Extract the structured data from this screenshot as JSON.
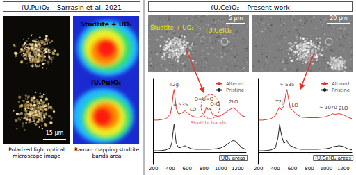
{
  "left_panel": {
    "header": "(U,Pu)O₂ – Sarrasin et al. 2021",
    "images": [
      {
        "caption": "Polarized light optical microscope image",
        "scale_bar": "15 µm"
      },
      {
        "caption": "Raman mapping studtite bands area",
        "labels": [
          "Studtite + UO₂",
          "(U,Pu)O₂"
        ]
      }
    ]
  },
  "right_panel": {
    "header": "(U,Ce)O₂ – Present work",
    "images": [
      {
        "labels": [
          "Studtite + UO₂",
          "(U,Ce)O₂"
        ],
        "scale_bar": "5 µm"
      },
      {
        "scale_bar": "20 µm"
      }
    ]
  },
  "chart_data": [
    {
      "type": "line",
      "title": "UO₂ areas",
      "x": [
        200,
        250,
        300,
        350,
        400,
        420,
        435,
        445,
        455,
        470,
        500,
        540,
        575,
        600,
        650,
        700,
        750,
        800,
        830,
        850,
        870,
        900,
        950,
        1000,
        1050,
        1100,
        1130,
        1150,
        1170,
        1200,
        1250,
        1300
      ],
      "series": [
        {
          "name": "Altered",
          "color": "#e8302a",
          "values": [
            1.1,
            1.1,
            1.12,
            1.15,
            1.3,
            1.6,
            2.0,
            2.15,
            1.9,
            1.5,
            1.3,
            1.35,
            1.42,
            1.35,
            1.25,
            1.2,
            1.2,
            1.3,
            1.55,
            1.45,
            1.5,
            1.3,
            1.22,
            1.25,
            1.35,
            1.45,
            1.5,
            1.52,
            1.48,
            1.4,
            1.25,
            1.2
          ]
        },
        {
          "name": "Pristine",
          "color": "#222222",
          "values": [
            0.05,
            0.05,
            0.06,
            0.08,
            0.15,
            0.35,
            0.75,
            0.95,
            0.7,
            0.3,
            0.15,
            0.18,
            0.22,
            0.18,
            0.12,
            0.1,
            0.1,
            0.1,
            0.1,
            0.1,
            0.1,
            0.11,
            0.12,
            0.15,
            0.22,
            0.32,
            0.38,
            0.4,
            0.38,
            0.3,
            0.15,
            0.1
          ]
        }
      ],
      "xlim": [
        200,
        1300
      ],
      "xticks": [
        200,
        400,
        600,
        800,
        1000,
        1200
      ],
      "ylim": [
        -0.4,
        2.5
      ],
      "tick_labels": "x",
      "legend": "upper right",
      "annotations": [
        {
          "text": "T2g",
          "x": 445,
          "y": 2.3,
          "color": "#000000"
        },
        {
          "text": "≈ 535",
          "x": 520,
          "y": 1.62,
          "color": "#000000"
        },
        {
          "text": "LO",
          "x": 670,
          "y": 1.45,
          "color": "#000000"
        },
        {
          "text": "O=U=O",
          "x": 800,
          "y": 1.8,
          "color": "#000000"
        },
        {
          "text": "O-O",
          "x": 930,
          "y": 1.65,
          "color": "#000000"
        },
        {
          "text": "2LO",
          "x": 1150,
          "y": 1.72,
          "color": "#000000"
        },
        {
          "text": "Studtite bands",
          "x": 850,
          "y": 1.0,
          "color": "#e8302a"
        }
      ]
    },
    {
      "type": "line",
      "title": "(U,Ce)O₂ areas",
      "x": [
        200,
        250,
        300,
        350,
        400,
        430,
        450,
        470,
        500,
        520,
        535,
        550,
        575,
        600,
        650,
        700,
        800,
        900,
        1000,
        1050,
        1070,
        1100,
        1150,
        1200,
        1250,
        1300
      ],
      "series": [
        {
          "name": "Altered",
          "color": "#e8302a",
          "values": [
            1.1,
            1.1,
            1.12,
            1.15,
            1.25,
            1.45,
            1.55,
            1.45,
            1.6,
            1.95,
            2.15,
            1.9,
            1.5,
            1.45,
            1.3,
            1.2,
            1.18,
            1.18,
            1.22,
            1.28,
            1.32,
            1.3,
            1.32,
            1.28,
            1.2,
            1.15
          ]
        },
        {
          "name": "Pristine",
          "color": "#222222",
          "values": [
            0.05,
            0.05,
            0.06,
            0.08,
            0.15,
            0.5,
            0.95,
            0.6,
            0.3,
            0.35,
            0.4,
            0.3,
            0.22,
            0.2,
            0.12,
            0.1,
            0.1,
            0.1,
            0.12,
            0.15,
            0.18,
            0.2,
            0.22,
            0.2,
            0.12,
            0.08
          ]
        }
      ],
      "xlim": [
        200,
        1300
      ],
      "xticks": [
        200,
        400,
        600,
        800,
        1000,
        1200
      ],
      "ylim": [
        -0.4,
        2.5
      ],
      "tick_labels": "x",
      "legend": "upper right",
      "annotations": [
        {
          "text": "T2g",
          "x": 455,
          "y": 1.72,
          "color": "#000000"
        },
        {
          "text": "≈ 535",
          "x": 535,
          "y": 2.3,
          "color": "#000000"
        },
        {
          "text": "LO",
          "x": 630,
          "y": 1.6,
          "color": "#000000"
        },
        {
          "text": "≈ 1070",
          "x": 1020,
          "y": 1.52,
          "color": "#000000"
        },
        {
          "text": "2LO",
          "x": 1200,
          "y": 1.5,
          "color": "#000000"
        }
      ]
    }
  ]
}
